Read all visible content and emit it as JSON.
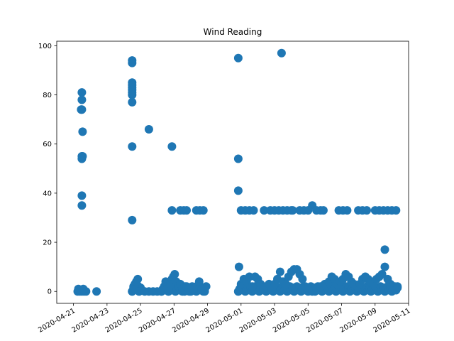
{
  "chart_data": {
    "type": "scatter",
    "title": "Wind Reading",
    "xlabel": "",
    "ylabel": "",
    "xlim": [
      "2020-04-20T00:00",
      "2020-05-11T00:00"
    ],
    "ylim": [
      -4.85,
      101.85
    ],
    "grid": false,
    "legend": "none",
    "marker_color": "#1f77b4",
    "xticks": [
      "2020-04-21",
      "2020-04-23",
      "2020-04-25",
      "2020-04-27",
      "2020-04-29",
      "2020-05-01",
      "2020-05-03",
      "2020-05-05",
      "2020-05-07",
      "2020-05-09",
      "2020-05-11"
    ],
    "yticks": [
      0,
      20,
      40,
      60,
      80,
      100
    ],
    "series": [
      {
        "points": [
          [
            "2020-04-21T06:00",
            0
          ],
          [
            "2020-04-21T09:00",
            0
          ],
          [
            "2020-04-21T12:00",
            0
          ],
          [
            "2020-04-21T15:00",
            0
          ],
          [
            "2020-04-21T18:00",
            0
          ],
          [
            "2020-04-21T07:00",
            1
          ],
          [
            "2020-04-21T14:00",
            1
          ],
          [
            "2020-04-21T12:00",
            81
          ],
          [
            "2020-04-21T12:00",
            78
          ],
          [
            "2020-04-21T12:00",
            74
          ],
          [
            "2020-04-21T11:00",
            74
          ],
          [
            "2020-04-21T13:00",
            65
          ],
          [
            "2020-04-21T12:00",
            55
          ],
          [
            "2020-04-21T12:00",
            54
          ],
          [
            "2020-04-21T13:00",
            55
          ],
          [
            "2020-04-21T12:00",
            39
          ],
          [
            "2020-04-21T12:00",
            35
          ],
          [
            "2020-04-22T09:00",
            0
          ],
          [
            "2020-04-24T12:00",
            94
          ],
          [
            "2020-04-24T12:00",
            93
          ],
          [
            "2020-04-24T12:00",
            85
          ],
          [
            "2020-04-24T12:00",
            84
          ],
          [
            "2020-04-24T12:00",
            83
          ],
          [
            "2020-04-24T12:00",
            82
          ],
          [
            "2020-04-24T12:00",
            81
          ],
          [
            "2020-04-24T12:00",
            80
          ],
          [
            "2020-04-24T12:00",
            77
          ],
          [
            "2020-04-24T12:00",
            59
          ],
          [
            "2020-04-24T12:00",
            29
          ],
          [
            "2020-04-24T12:00",
            0
          ],
          [
            "2020-04-24T14:00",
            2
          ],
          [
            "2020-04-24T16:00",
            1
          ],
          [
            "2020-04-24T18:00",
            4
          ],
          [
            "2020-04-24T20:00",
            5
          ],
          [
            "2020-04-24T22:00",
            0
          ],
          [
            "2020-04-25T12:00",
            66
          ],
          [
            "2020-04-25T06:00",
            0
          ],
          [
            "2020-04-25T12:00",
            0
          ],
          [
            "2020-04-25T18:00",
            0
          ],
          [
            "2020-04-26T00:00",
            0
          ],
          [
            "2020-04-26T06:00",
            0
          ],
          [
            "2020-04-26T10:00",
            2
          ],
          [
            "2020-04-26T12:00",
            4
          ],
          [
            "2020-04-26T14:00",
            1
          ],
          [
            "2020-04-26T21:00",
            59
          ],
          [
            "2020-04-26T21:00",
            33
          ],
          [
            "2020-04-26T16:00",
            0
          ],
          [
            "2020-04-26T19:00",
            3
          ],
          [
            "2020-04-26T21:00",
            5
          ],
          [
            "2020-04-26T23:00",
            6
          ],
          [
            "2020-04-27T01:00",
            7
          ],
          [
            "2020-04-27T03:00",
            4
          ],
          [
            "2020-04-27T06:00",
            2
          ],
          [
            "2020-04-27T09:00",
            3
          ],
          [
            "2020-04-27T12:00",
            1
          ],
          [
            "2020-04-27T15:00",
            0
          ],
          [
            "2020-04-27T18:00",
            2
          ],
          [
            "2020-04-27T21:00",
            1
          ],
          [
            "2020-04-27T09:00",
            33
          ],
          [
            "2020-04-27T14:00",
            33
          ],
          [
            "2020-04-27T18:00",
            33
          ],
          [
            "2020-04-28T00:00",
            0
          ],
          [
            "2020-04-28T03:00",
            1
          ],
          [
            "2020-04-28T08:00",
            2
          ],
          [
            "2020-04-28T12:00",
            4
          ],
          [
            "2020-04-28T16:00",
            1
          ],
          [
            "2020-04-28T20:00",
            0
          ],
          [
            "2020-04-28T08:00",
            33
          ],
          [
            "2020-04-28T13:00",
            33
          ],
          [
            "2020-04-28T18:00",
            33
          ],
          [
            "2020-04-30T20:00",
            95
          ],
          [
            "2020-04-30T20:00",
            54
          ],
          [
            "2020-04-30T20:00",
            41
          ],
          [
            "2020-04-30T21:00",
            10
          ],
          [
            "2020-04-30T20:00",
            0
          ],
          [
            "2020-05-01T00:00",
            3
          ],
          [
            "2020-05-01T04:00",
            5
          ],
          [
            "2020-05-01T08:00",
            4
          ],
          [
            "2020-05-01T12:00",
            6
          ],
          [
            "2020-05-01T16:00",
            2
          ],
          [
            "2020-05-01T20:00",
            6
          ],
          [
            "2020-05-02T00:00",
            5
          ],
          [
            "2020-05-02T04:00",
            3
          ],
          [
            "2020-05-02T08:00",
            1
          ],
          [
            "2020-05-02T12:00",
            2
          ],
          [
            "2020-05-02T16:00",
            3
          ],
          [
            "2020-05-02T20:00",
            1
          ],
          [
            "2020-05-03T00:00",
            3
          ],
          [
            "2020-05-03T04:00",
            5
          ],
          [
            "2020-05-03T08:00",
            8
          ],
          [
            "2020-05-03T12:00",
            4
          ],
          [
            "2020-05-03T16:00",
            3
          ],
          [
            "2020-05-03T20:00",
            6
          ],
          [
            "2020-05-04T00:00",
            8
          ],
          [
            "2020-05-04T04:00",
            9
          ],
          [
            "2020-05-04T08:00",
            9
          ],
          [
            "2020-05-04T12:00",
            7
          ],
          [
            "2020-05-04T16:00",
            5
          ],
          [
            "2020-05-04T20:00",
            2
          ],
          [
            "2020-05-05T00:00",
            1
          ],
          [
            "2020-05-05T06:00",
            0
          ],
          [
            "2020-05-05T12:00",
            1
          ],
          [
            "2020-05-05T18:00",
            2
          ],
          [
            "2020-05-06T00:00",
            3
          ],
          [
            "2020-05-06T06:00",
            4
          ],
          [
            "2020-05-06T10:00",
            6
          ],
          [
            "2020-05-06T14:00",
            5
          ],
          [
            "2020-05-06T18:00",
            3
          ],
          [
            "2020-05-06T22:00",
            4
          ],
          [
            "2020-05-07T02:00",
            5
          ],
          [
            "2020-05-07T06:00",
            7
          ],
          [
            "2020-05-07T10:00",
            6
          ],
          [
            "2020-05-07T14:00",
            4
          ],
          [
            "2020-05-07T18:00",
            3
          ],
          [
            "2020-05-07T22:00",
            2
          ],
          [
            "2020-05-08T02:00",
            3
          ],
          [
            "2020-05-08T06:00",
            5
          ],
          [
            "2020-05-08T10:00",
            6
          ],
          [
            "2020-05-08T14:00",
            5
          ],
          [
            "2020-05-08T18:00",
            4
          ],
          [
            "2020-05-08T22:00",
            3
          ],
          [
            "2020-05-09T02:00",
            5
          ],
          [
            "2020-05-09T06:00",
            6
          ],
          [
            "2020-05-09T10:00",
            7
          ],
          [
            "2020-05-09T14:00",
            10
          ],
          [
            "2020-05-09T18:00",
            5
          ],
          [
            "2020-05-09T22:00",
            3
          ],
          [
            "2020-05-10T02:00",
            2
          ],
          [
            "2020-05-10T06:00",
            1
          ],
          [
            "2020-05-10T08:00",
            2
          ],
          [
            "2020-05-09T14:00",
            17
          ],
          [
            "2020-05-03T10:00",
            97
          ],
          [
            "2020-05-05T06:00",
            35
          ],
          [
            "2020-05-01T00:00",
            33
          ],
          [
            "2020-05-01T06:00",
            33
          ],
          [
            "2020-05-01T12:00",
            33
          ],
          [
            "2020-05-01T18:00",
            33
          ],
          [
            "2020-05-02T09:00",
            33
          ],
          [
            "2020-05-02T18:00",
            33
          ],
          [
            "2020-05-03T00:00",
            33
          ],
          [
            "2020-05-03T06:00",
            33
          ],
          [
            "2020-05-03T12:00",
            33
          ],
          [
            "2020-05-03T18:00",
            33
          ],
          [
            "2020-05-04T00:00",
            33
          ],
          [
            "2020-05-04T02:00",
            33
          ],
          [
            "2020-05-04T12:00",
            33
          ],
          [
            "2020-05-04T18:00",
            33
          ],
          [
            "2020-05-05T00:00",
            33
          ],
          [
            "2020-05-05T12:00",
            33
          ],
          [
            "2020-05-05T18:00",
            33
          ],
          [
            "2020-05-05T22:00",
            33
          ],
          [
            "2020-05-06T20:00",
            33
          ],
          [
            "2020-05-07T02:00",
            33
          ],
          [
            "2020-05-07T08:00",
            33
          ],
          [
            "2020-05-08T00:00",
            33
          ],
          [
            "2020-05-08T06:00",
            33
          ],
          [
            "2020-05-08T12:00",
            33
          ],
          [
            "2020-05-09T00:00",
            33
          ],
          [
            "2020-05-09T06:00",
            33
          ],
          [
            "2020-05-09T12:00",
            33
          ],
          [
            "2020-05-09T18:00",
            33
          ],
          [
            "2020-05-10T00:00",
            33
          ],
          [
            "2020-05-10T06:00",
            33
          ]
        ],
        "dense_bands": [
          {
            "x_start": "2020-04-24T12:00",
            "x_end": "2020-04-25T00:00",
            "y_min": 0,
            "y_max": 3
          },
          {
            "x_start": "2020-04-26T06:00",
            "x_end": "2020-04-28T22:00",
            "y_min": 0,
            "y_max": 2
          },
          {
            "x_start": "2020-04-30T20:00",
            "x_end": "2020-05-10T08:00",
            "y_min": 0,
            "y_max": 2
          }
        ]
      }
    ]
  }
}
